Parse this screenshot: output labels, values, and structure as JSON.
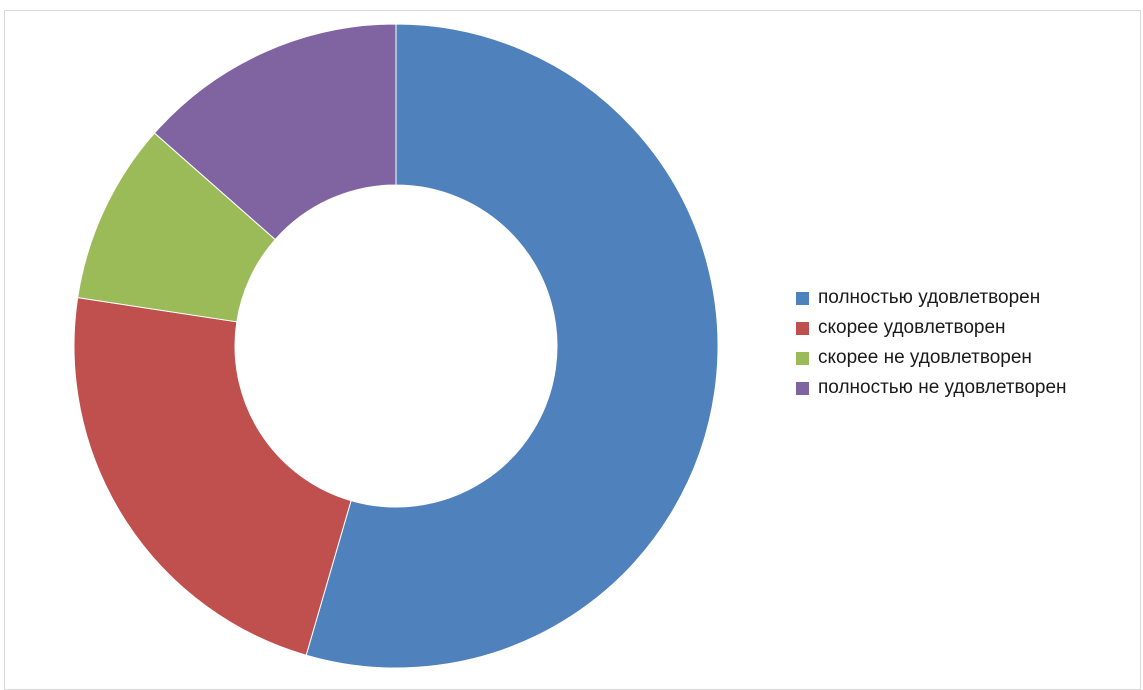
{
  "chart_data": {
    "type": "pie",
    "variant": "donut",
    "title": "",
    "legend_position": "right",
    "categories": [
      "полностью удовлетворен",
      "скорее удовлетворен",
      "скорее не удовлетворен",
      "полностью не удовлетворен"
    ],
    "values": [
      54.5,
      22.9,
      9.1,
      13.5
    ],
    "colors": [
      "#4f81bd",
      "#c0504d",
      "#9bbb59",
      "#8064a2"
    ]
  }
}
